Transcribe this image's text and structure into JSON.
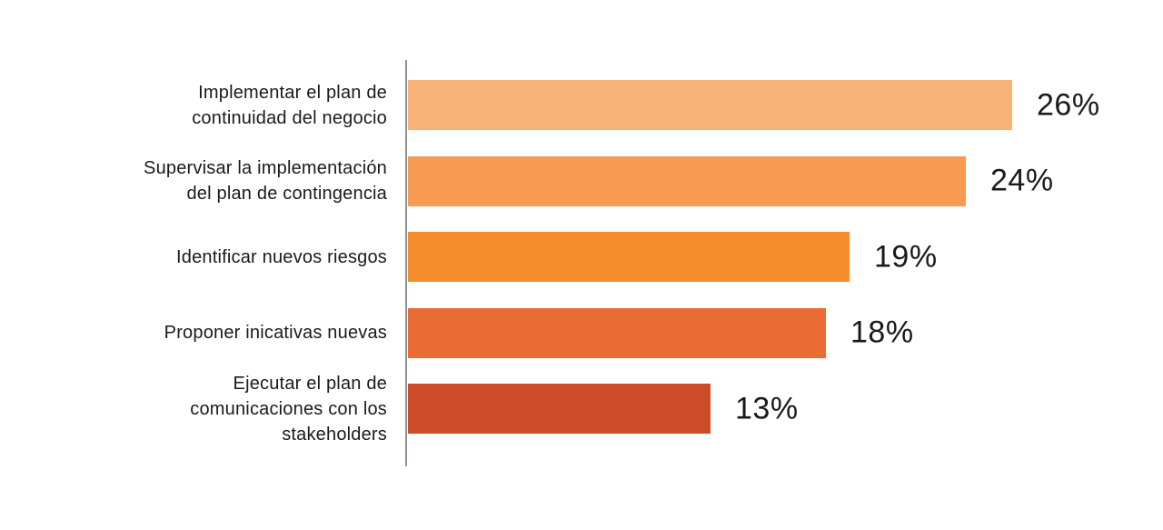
{
  "chart_data": {
    "type": "bar",
    "orientation": "horizontal",
    "title": "",
    "xlabel": "",
    "ylabel": "",
    "xlim": [
      0,
      26
    ],
    "grid": false,
    "legend": "none",
    "axis_color": "#8C9494",
    "text_color": "#1A1A1A",
    "categories": [
      "Implementar el plan de continuidad del negocio",
      "Supervisar la implementación del plan de contingencia",
      "Identificar nuevos riesgos",
      "Proponer inicativas nuevas",
      "Ejecutar el plan de comunicaciones con los stakeholders"
    ],
    "values": [
      26,
      24,
      19,
      18,
      13
    ],
    "bars": [
      {
        "label": "Implementar el plan de continuidad del negocio",
        "label_lines": [
          "Implementar el plan de",
          "continuidad del negocio"
        ],
        "value": 26,
        "value_label": "26%",
        "color": "#F9B276"
      },
      {
        "label": "Supervisar la implementación del plan de contingencia",
        "label_lines": [
          "Supervisar la implementación",
          "del plan de contingencia"
        ],
        "value": 24,
        "value_label": "24%",
        "color": "#F79A52"
      },
      {
        "label": "Identificar nuevos riesgos",
        "label_lines": [
          "Identificar nuevos riesgos"
        ],
        "value": 19,
        "value_label": "19%",
        "color": "#F68D2D"
      },
      {
        "label": "Proponer inicativas nuevas",
        "label_lines": [
          "Proponer inicativas nuevas"
        ],
        "value": 18,
        "value_label": "18%",
        "color": "#E86C34"
      },
      {
        "label": "Ejecutar el plan de comunicaciones con los stakeholders",
        "label_lines": [
          "Ejecutar el plan de",
          "comunicaciones con los",
          "stakeholders"
        ],
        "value": 13,
        "value_label": "13%",
        "color": "#CB4C26"
      }
    ]
  }
}
